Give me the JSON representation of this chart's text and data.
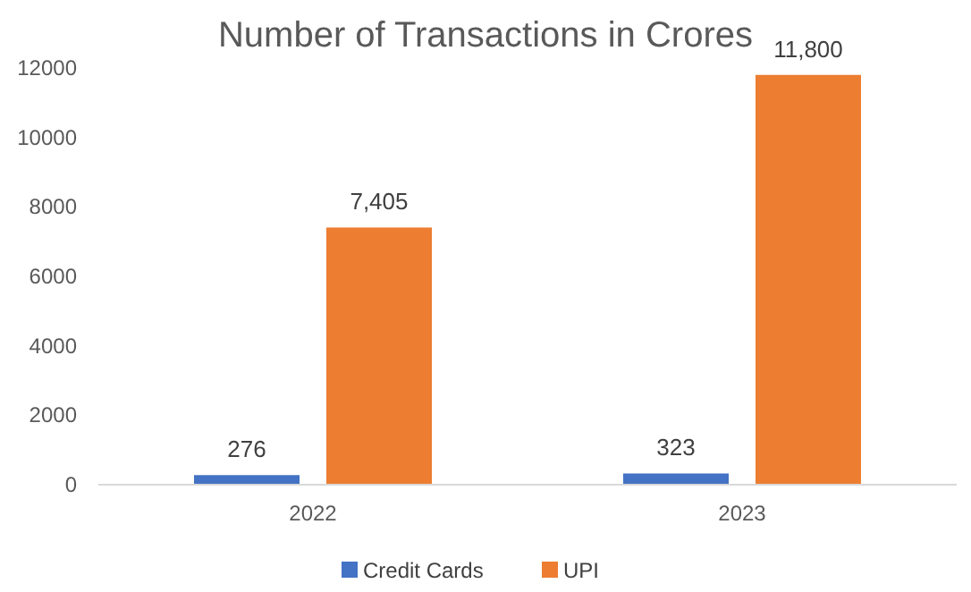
{
  "chart_data": {
    "type": "bar",
    "title": "Number of Transactions in Crores",
    "categories": [
      "2022",
      "2023"
    ],
    "series": [
      {
        "name": "Credit Cards",
        "color": "#4472c4",
        "values": [
          276,
          323
        ],
        "value_labels": [
          "276",
          "323"
        ]
      },
      {
        "name": "UPI",
        "color": "#ed7d31",
        "values": [
          7405,
          11800
        ],
        "value_labels": [
          "7,405",
          "11,800"
        ]
      }
    ],
    "ylim": [
      0,
      12000
    ],
    "yticks": [
      0,
      2000,
      4000,
      6000,
      8000,
      10000,
      12000
    ],
    "grid": false,
    "legend": "bottom"
  }
}
